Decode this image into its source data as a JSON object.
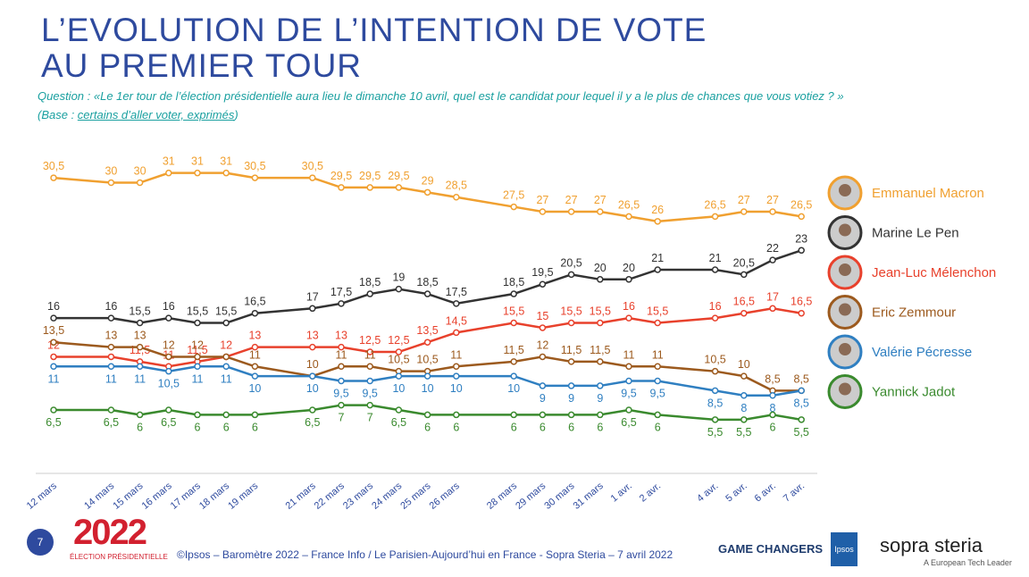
{
  "header": {
    "title_line1": "L’EVOLUTION DE L’INTENTION DE VOTE",
    "title_line2": "AU PREMIER TOUR",
    "question": "Question : «Le 1er tour de l’élection présidentielle aura lieu le dimanche 10 avril, quel est le candidat pour lequel il y a le plus de chances que vous votiez ? »",
    "base_prefix": "(Base : ",
    "base_link": "certains d’aller voter, exprimés",
    "base_suffix": ")"
  },
  "chart_data": {
    "type": "line",
    "categories": [
      "12 mars",
      "14 mars",
      "15 mars",
      "16 mars",
      "17 mars",
      "18 mars",
      "19 mars",
      "21 mars",
      "22 mars",
      "23 mars",
      "24 mars",
      "25 mars",
      "26 mars",
      "28 mars",
      "29 mars",
      "30 mars",
      "31 mars",
      "1 avr.",
      "2 avr.",
      "4 avr.",
      "5 avr.",
      "6 avr.",
      "7 avr."
    ],
    "series": [
      {
        "name": "Emmanuel Macron",
        "color": "#f0a030",
        "values": [
          30.5,
          30,
          30,
          31,
          31,
          31,
          30.5,
          30.5,
          29.5,
          29.5,
          29.5,
          29,
          28.5,
          27.5,
          27,
          27,
          27,
          26.5,
          26,
          26.5,
          27,
          27,
          26.5
        ],
        "value_labels": [
          "30,5",
          "30",
          "30",
          "31",
          "31",
          "31",
          "30,5",
          "30,5",
          "29,5",
          "29,5",
          "29,5",
          "29",
          "28,5",
          "27,5",
          "27",
          "27",
          "27",
          "26,5",
          "26",
          "26,5",
          "27",
          "27",
          "26,5"
        ]
      },
      {
        "name": "Marine Le Pen",
        "color": "#333333",
        "values": [
          16,
          16,
          15.5,
          16,
          15.5,
          15.5,
          16.5,
          17,
          17.5,
          18.5,
          19,
          18.5,
          17.5,
          18.5,
          19.5,
          20.5,
          20,
          20,
          21,
          21,
          20.5,
          22,
          23
        ],
        "value_labels": [
          "16",
          "16",
          "15,5",
          "16",
          "15,5",
          "15,5",
          "16,5",
          "17",
          "17,5",
          "18,5",
          "19",
          "18,5",
          "17,5",
          "18,5",
          "19,5",
          "20,5",
          "20",
          "20",
          "21",
          "21",
          "20,5",
          "22",
          "23"
        ]
      },
      {
        "name": "Jean-Luc Mélenchon",
        "color": "#e8412c",
        "values": [
          12,
          12,
          11.5,
          11,
          11.5,
          12,
          13,
          13,
          13,
          12.5,
          12.5,
          13.5,
          14.5,
          15.5,
          15,
          15.5,
          15.5,
          16,
          15.5,
          16,
          16.5,
          17,
          16.5
        ],
        "value_labels": [
          "12",
          null,
          "11,5",
          "11",
          "11,5",
          "12",
          "13",
          "13",
          "13",
          "12,5",
          "12,5",
          "13,5",
          "14,5",
          "15,5",
          "15",
          "15,5",
          "15,5",
          "16",
          "15,5",
          "16",
          "16,5",
          "17",
          "16,5"
        ]
      },
      {
        "name": "Eric Zemmour",
        "color": "#9c5a1e",
        "values": [
          13.5,
          13,
          13,
          12,
          12,
          12,
          11,
          10,
          11,
          11,
          10.5,
          10.5,
          11,
          11.5,
          12,
          11.5,
          11.5,
          11,
          11,
          10.5,
          10,
          8.5,
          8.5
        ],
        "value_labels": [
          "13,5",
          "13",
          "13",
          "12",
          "12",
          null,
          "11",
          "10",
          "11",
          "11",
          "10,5",
          "10,5",
          "11",
          "11,5",
          "12",
          "11,5",
          "11,5",
          "11",
          "11",
          "10,5",
          "10",
          "8,5",
          "8,5"
        ]
      },
      {
        "name": "Valérie Pécresse",
        "color": "#2f7fc1",
        "values": [
          11,
          11,
          11,
          10.5,
          11,
          11,
          10,
          10,
          9.5,
          9.5,
          10,
          10,
          10,
          10,
          9,
          9,
          9,
          9.5,
          9.5,
          8.5,
          8,
          8,
          8.5
        ],
        "value_labels": [
          "11",
          "11",
          "11",
          "10,5",
          "11",
          "11",
          "10",
          "10",
          "9,5",
          "9,5",
          "10",
          "10",
          "10",
          "10",
          "9",
          "9",
          "9",
          "9,5",
          "9,5",
          "8,5",
          "8",
          "8",
          "8,5"
        ]
      },
      {
        "name": "Yannick Jadot",
        "color": "#3a8a2e",
        "values": [
          6.5,
          6.5,
          6,
          6.5,
          6,
          6,
          6,
          6.5,
          7,
          7,
          6.5,
          6,
          6,
          6,
          6,
          6,
          6,
          6.5,
          6,
          5.5,
          5.5,
          6,
          5.5
        ],
        "value_labels": [
          "6,5",
          "6,5",
          "6",
          "6,5",
          "6",
          "6",
          "6",
          "6,5",
          "7",
          "7",
          "6,5",
          "6",
          "6",
          "6",
          "6",
          "6",
          "6",
          "6,5",
          "6",
          "5,5",
          "5,5",
          "6",
          "5,5"
        ]
      }
    ]
  },
  "footer": {
    "page": "7",
    "logo": "2022",
    "logo_sub": "ÉLECTION PRÉSIDENTIELLE",
    "source": "©Ipsos – Baromètre 2022 – France Info / Le Parisien-Aujourd’hui en France - Sopra Steria – 7 avril 2022",
    "game": "GAME CHANGERS",
    "ipsos": "Ipsos",
    "sopra": "sopra steria",
    "tag": "A European Tech Leader"
  }
}
